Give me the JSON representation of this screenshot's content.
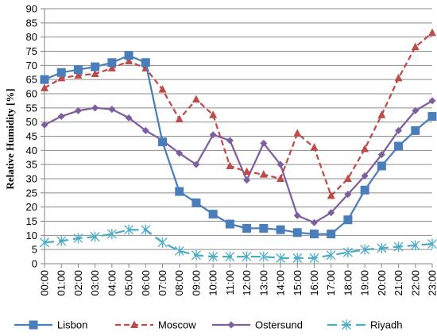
{
  "chart_data": {
    "type": "line",
    "title": "",
    "xlabel": "",
    "ylabel": "Relative Humidity [%]",
    "ylim": [
      0,
      90
    ],
    "ytick_step": 5,
    "grid": "horizontal",
    "legend_position": "bottom",
    "categories": [
      "00:00",
      "01:00",
      "02:00",
      "03:00",
      "04:00",
      "05:00",
      "06:00",
      "07:00",
      "08:00",
      "09:00",
      "10:00",
      "11:00",
      "12:00",
      "13:00",
      "14:00",
      "15:00",
      "16:00",
      "17:00",
      "18:00",
      "19:00",
      "20:00",
      "21:00",
      "22:00",
      "23:00"
    ],
    "series": [
      {
        "name": "Lisbon",
        "color": "#4a7ebb",
        "dash": "solid",
        "marker": "square",
        "values": [
          65,
          67.5,
          68.5,
          69.5,
          71,
          73.5,
          71,
          43,
          25.5,
          21.5,
          17.5,
          14,
          12.5,
          12.5,
          12,
          11,
          10.5,
          10.5,
          15.5,
          26,
          34.5,
          41.5,
          47,
          52
        ]
      },
      {
        "name": "Moscow",
        "color": "#be4b48",
        "dash": "dashed",
        "marker": "triangle",
        "values": [
          62,
          65.5,
          66.5,
          67,
          69,
          71.5,
          69,
          61.5,
          51,
          58,
          52.5,
          34.5,
          32.5,
          31.5,
          30,
          46,
          41,
          24,
          30,
          40.5,
          52.5,
          65.5,
          76.5,
          81.5
        ]
      },
      {
        "name": "Ostersund",
        "color": "#7d5fa0",
        "dash": "solid",
        "marker": "diamond",
        "values": [
          49,
          52,
          54,
          55,
          54.5,
          51.5,
          47,
          43.5,
          39,
          35,
          45.5,
          43.5,
          29.5,
          42.5,
          35,
          17,
          14.5,
          18,
          24.5,
          31,
          38.5,
          47,
          54,
          57.5
        ]
      },
      {
        "name": "Riyadh",
        "color": "#4bacc6",
        "dash": "longdash",
        "marker": "asterisk",
        "values": [
          7.5,
          8,
          9,
          9.5,
          10.5,
          12,
          12,
          7.5,
          4.5,
          3,
          2.5,
          2.5,
          2.5,
          2.5,
          2,
          2,
          2,
          3,
          4,
          5,
          5.5,
          6,
          6.5,
          7
        ]
      }
    ]
  }
}
